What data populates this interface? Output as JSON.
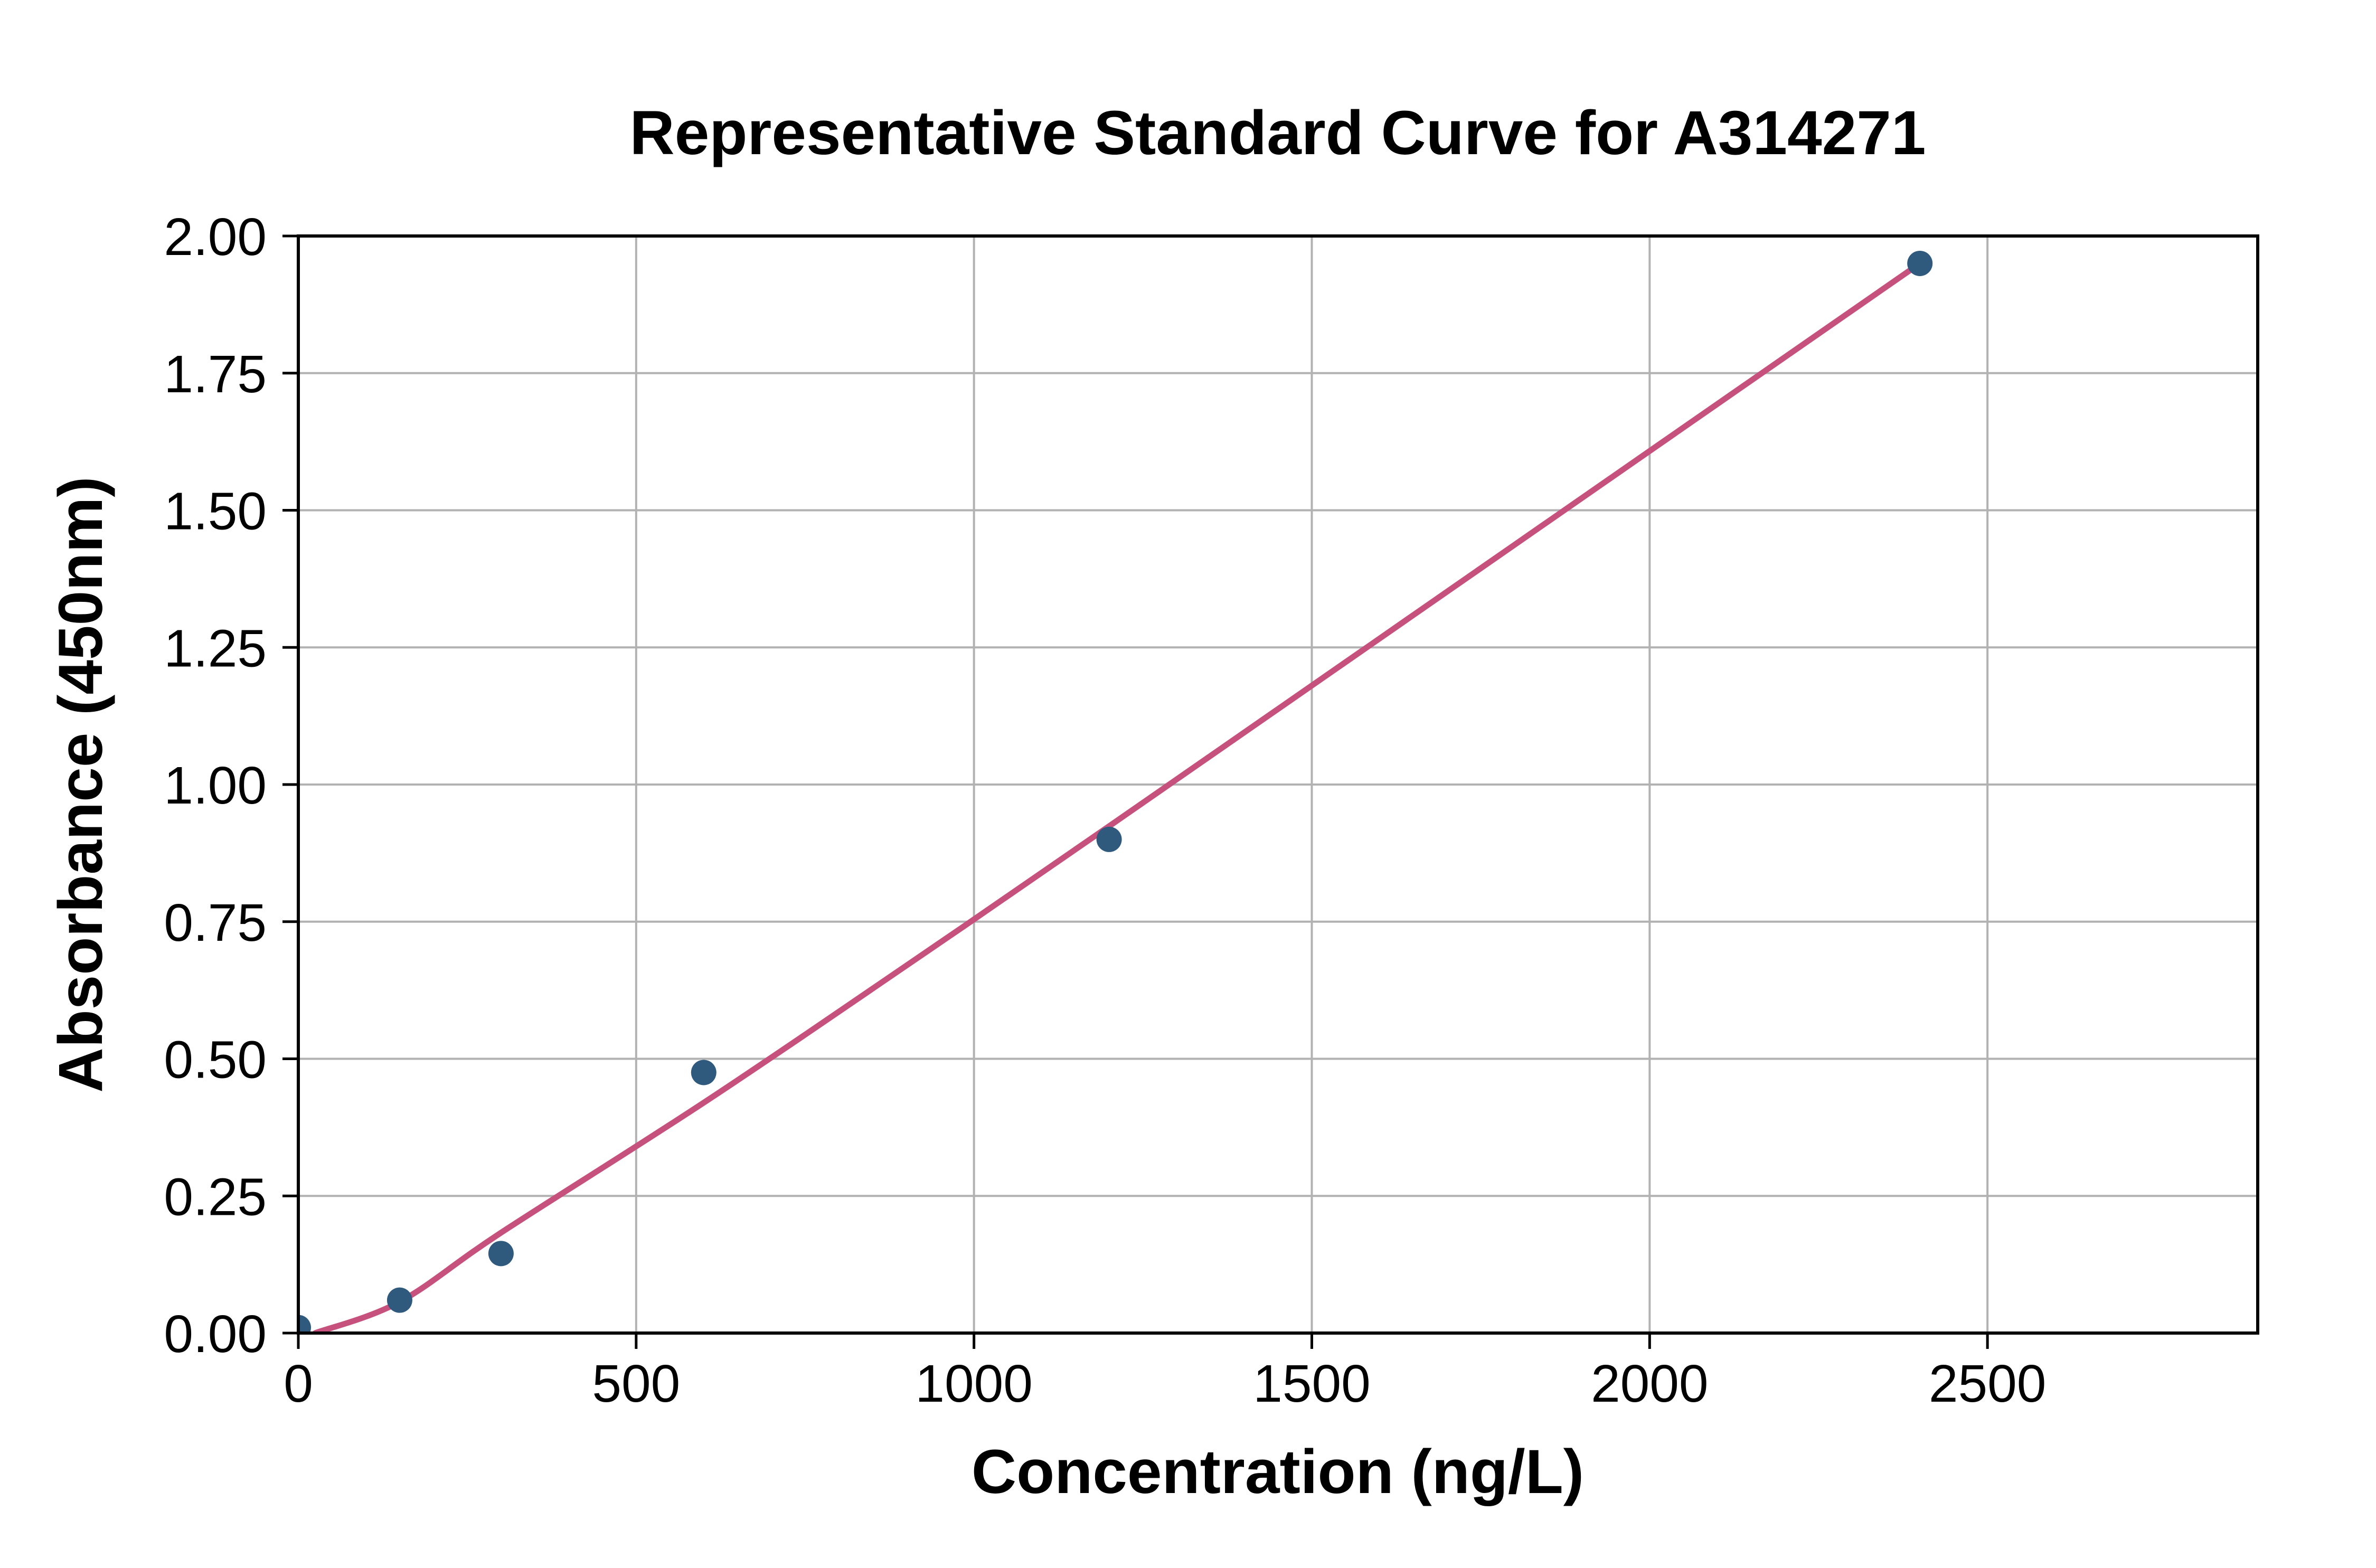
{
  "chart": {
    "title": "Representative Standard Curve for A314271",
    "x_axis_label": "Concentration (ng/L)",
    "y_axis_label": "Absorbance (450nm)"
  },
  "chart_data": {
    "type": "scatter",
    "title": "Representative Standard Curve for A314271",
    "xlabel": "Concentration (ng/L)",
    "ylabel": "Absorbance (450nm)",
    "xlim": [
      0,
      2900
    ],
    "ylim": [
      0,
      2.0
    ],
    "x_ticks": [
      0,
      500,
      1000,
      1500,
      2000,
      2500
    ],
    "x_tick_labels": [
      "0",
      "500",
      "1000",
      "1500",
      "2000",
      "2500"
    ],
    "y_ticks": [
      0.0,
      0.25,
      0.5,
      0.75,
      1.0,
      1.25,
      1.5,
      1.75,
      2.0
    ],
    "y_tick_labels": [
      "0.00",
      "0.25",
      "0.50",
      "0.75",
      "1.00",
      "1.25",
      "1.50",
      "1.75",
      "2.00"
    ],
    "grid": true,
    "legend": false,
    "series": [
      {
        "name": "standard-points",
        "type": "scatter",
        "x": [
          0,
          150,
          300,
          600,
          1200,
          2400
        ],
        "y": [
          0.01,
          0.06,
          0.145,
          0.475,
          0.9,
          1.95
        ],
        "color": "#2F5A7D",
        "marker_radius": 24
      },
      {
        "name": "fitted-curve",
        "type": "line",
        "x": [
          25,
          150,
          300,
          600,
          900,
          1200,
          1800,
          2400
        ],
        "y": [
          0.0,
          0.057,
          0.183,
          0.42,
          0.67,
          0.924,
          1.437,
          1.95
        ],
        "color": "#C5517C",
        "line_width": 11
      }
    ],
    "colors": {
      "grid": "#B2B2B2",
      "spine": "#000000",
      "tick": "#000000",
      "text": "#000000",
      "background": "#FFFFFF"
    }
  }
}
